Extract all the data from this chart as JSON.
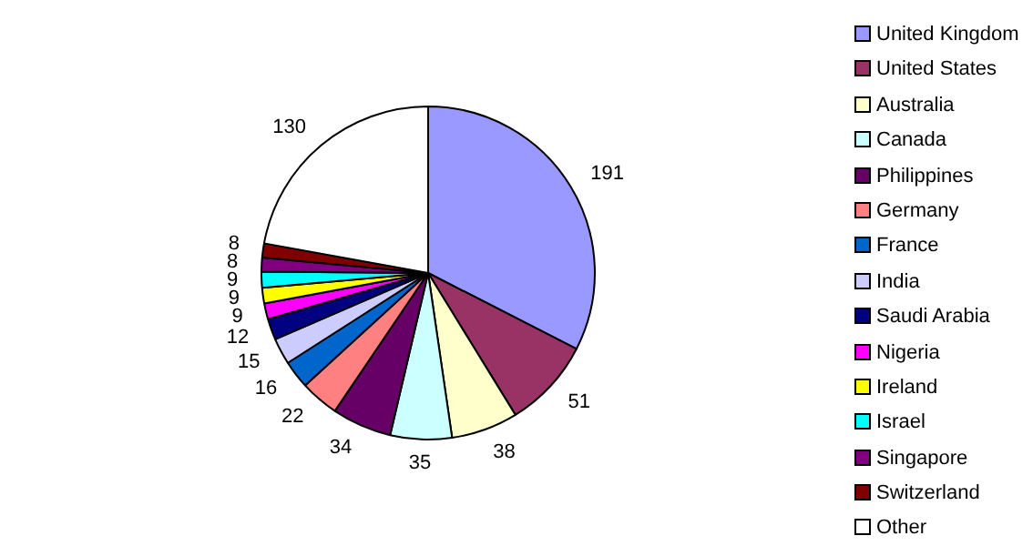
{
  "chart_data": {
    "type": "pie",
    "categories": [
      "United Kingdom",
      "United States",
      "Australia",
      "Canada",
      "Philippines",
      "Germany",
      "France",
      "India",
      "Saudi Arabia",
      "Nigeria",
      "Ireland",
      "Israel",
      "Singapore",
      "Switzerland",
      "Other"
    ],
    "values": [
      191,
      51,
      38,
      35,
      34,
      22,
      16,
      15,
      12,
      9,
      9,
      9,
      8,
      8,
      130
    ],
    "colors": [
      "#9999ff",
      "#993366",
      "#ffffcc",
      "#ccffff",
      "#660066",
      "#ff8080",
      "#0066cc",
      "#ccccff",
      "#000080",
      "#ff00ff",
      "#ffff00",
      "#00ffff",
      "#800080",
      "#800000",
      "#ffffff"
    ],
    "data_labels": true,
    "legend": "right"
  }
}
